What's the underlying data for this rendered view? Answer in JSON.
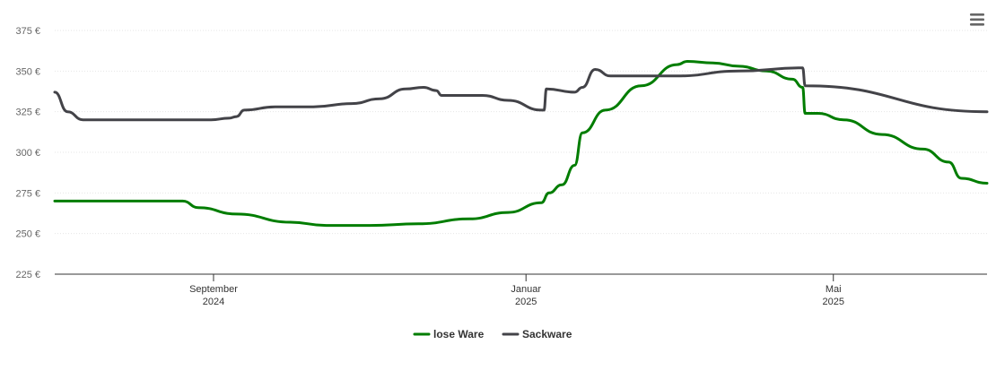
{
  "menu": {
    "icon": "hamburger-menu-icon"
  },
  "chart_data": {
    "type": "line",
    "title": "",
    "xlabel": "",
    "ylabel": "",
    "ylim": [
      225,
      375
    ],
    "y_ticks": [
      "225 €",
      "250 €",
      "275 €",
      "300 €",
      "325 €",
      "350 €",
      "375 €"
    ],
    "y_tick_values": [
      225,
      250,
      275,
      300,
      325,
      350,
      375
    ],
    "x_range": [
      "2024-07-01",
      "2025-06-30"
    ],
    "x_ticks": [
      {
        "date": "2024-09-01",
        "month": "September",
        "year": "2024"
      },
      {
        "date": "2025-01-01",
        "month": "Januar",
        "year": "2025"
      },
      {
        "date": "2025-05-01",
        "month": "Mai",
        "year": "2025"
      }
    ],
    "grid": true,
    "legend_position": "bottom-center",
    "series": [
      {
        "name": "lose Ware",
        "color": "#007d00",
        "points": [
          [
            "2024-07-01",
            270
          ],
          [
            "2024-08-20",
            270
          ],
          [
            "2024-08-26",
            266
          ],
          [
            "2024-09-10",
            262
          ],
          [
            "2024-10-01",
            257
          ],
          [
            "2024-10-15",
            255
          ],
          [
            "2024-11-01",
            255
          ],
          [
            "2024-11-20",
            256
          ],
          [
            "2024-12-10",
            259
          ],
          [
            "2024-12-25",
            263
          ],
          [
            "2025-01-07",
            269
          ],
          [
            "2025-01-10",
            275
          ],
          [
            "2025-01-15",
            280
          ],
          [
            "2025-01-20",
            292
          ],
          [
            "2025-01-23",
            312
          ],
          [
            "2025-02-01",
            326
          ],
          [
            "2025-02-15",
            341
          ],
          [
            "2025-03-01",
            354
          ],
          [
            "2025-03-05",
            356
          ],
          [
            "2025-03-15",
            355
          ],
          [
            "2025-03-25",
            353
          ],
          [
            "2025-04-05",
            350
          ],
          [
            "2025-04-15",
            345
          ],
          [
            "2025-04-19",
            340
          ],
          [
            "2025-04-20",
            324
          ],
          [
            "2025-04-25",
            324
          ],
          [
            "2025-05-05",
            320
          ],
          [
            "2025-05-20",
            311
          ],
          [
            "2025-06-05",
            302
          ],
          [
            "2025-06-15",
            294
          ],
          [
            "2025-06-20",
            284
          ],
          [
            "2025-06-30",
            281
          ]
        ]
      },
      {
        "name": "Sackware",
        "color": "#434348",
        "points": [
          [
            "2024-07-01",
            337
          ],
          [
            "2024-07-06",
            325
          ],
          [
            "2024-07-12",
            320
          ],
          [
            "2024-08-31",
            320
          ],
          [
            "2024-09-07",
            321
          ],
          [
            "2024-09-10",
            322
          ],
          [
            "2024-09-13",
            326
          ],
          [
            "2024-09-25",
            328
          ],
          [
            "2024-10-10",
            328
          ],
          [
            "2024-10-25",
            330
          ],
          [
            "2024-11-05",
            333
          ],
          [
            "2024-11-15",
            339
          ],
          [
            "2024-11-22",
            340
          ],
          [
            "2024-11-27",
            338
          ],
          [
            "2024-11-29",
            335
          ],
          [
            "2024-12-15",
            335
          ],
          [
            "2024-12-25",
            332
          ],
          [
            "2025-01-07",
            326
          ],
          [
            "2025-01-08",
            326
          ],
          [
            "2025-01-09",
            339
          ],
          [
            "2025-01-20",
            337
          ],
          [
            "2025-01-23",
            340
          ],
          [
            "2025-01-28",
            351
          ],
          [
            "2025-02-03",
            347
          ],
          [
            "2025-03-01",
            347
          ],
          [
            "2025-03-25",
            350
          ],
          [
            "2025-04-19",
            352
          ],
          [
            "2025-04-20",
            341
          ],
          [
            "2025-06-30",
            325
          ]
        ]
      }
    ]
  }
}
